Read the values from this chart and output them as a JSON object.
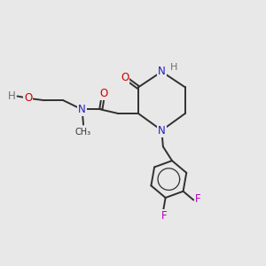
{
  "bg_color": "#e8e8e8",
  "atom_colors": {
    "C": "#303030",
    "N": "#2020bb",
    "O": "#cc0000",
    "F": "#bb00bb",
    "H": "#707070"
  },
  "bond_color": "#303030",
  "bond_width": 1.4,
  "font_size": 8.5
}
